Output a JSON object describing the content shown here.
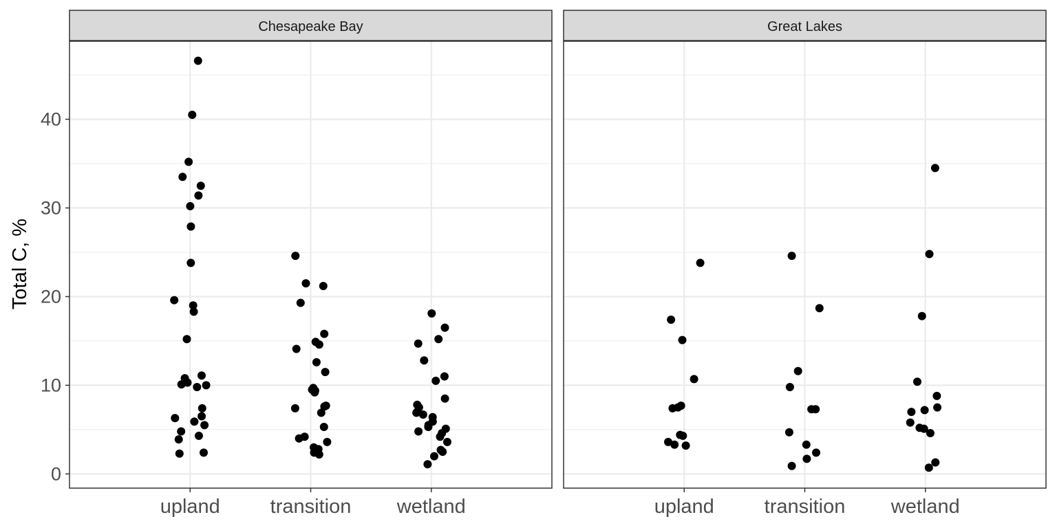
{
  "chart_data": {
    "type": "scatter",
    "ylabel": "Total C, %",
    "xlabel": "",
    "categories": [
      "upland",
      "transition",
      "wetland"
    ],
    "yticks": [
      0,
      10,
      20,
      30,
      40
    ],
    "ylim": [
      -1.6,
      48.8
    ],
    "grid": true,
    "colors": {
      "point": "#000000",
      "strip_fill": "#d9d9d9",
      "grid": "#ebebeb",
      "border": "#333333"
    },
    "facets": [
      {
        "title": "Chesapeake Bay",
        "points": {
          "upland": [
            46.6,
            40.5,
            35.2,
            33.5,
            32.5,
            31.4,
            30.2,
            27.9,
            23.8,
            19.6,
            19.0,
            18.3,
            15.2,
            11.1,
            10.8,
            10.3,
            10.1,
            10.0,
            9.8,
            7.4,
            6.5,
            6.3,
            5.9,
            5.5,
            4.8,
            4.3,
            3.9,
            2.4,
            2.3
          ],
          "transition": [
            24.6,
            21.5,
            21.2,
            19.3,
            15.8,
            14.9,
            14.6,
            14.1,
            12.6,
            11.5,
            9.7,
            9.5,
            9.4,
            9.2,
            7.7,
            7.6,
            7.4,
            6.9,
            5.3,
            4.2,
            4.0,
            3.6,
            3.0,
            2.8,
            2.4,
            2.2
          ],
          "wetland": [
            18.1,
            16.5,
            15.2,
            14.7,
            12.8,
            11.0,
            10.5,
            8.5,
            7.8,
            7.5,
            7.0,
            6.9,
            6.7,
            6.4,
            5.9,
            5.5,
            5.3,
            5.1,
            4.8,
            4.6,
            4.2,
            3.6,
            2.7,
            2.5,
            2.0,
            1.1
          ]
        }
      },
      {
        "title": "Great Lakes",
        "points": {
          "upland": [
            23.8,
            17.4,
            15.1,
            10.7,
            7.7,
            7.5,
            7.4,
            4.4,
            4.3,
            3.6,
            3.3,
            3.2
          ],
          "transition": [
            24.6,
            18.7,
            11.6,
            9.8,
            7.3,
            7.3,
            4.7,
            3.3,
            2.4,
            1.7,
            0.9
          ],
          "wetland": [
            34.5,
            24.8,
            17.8,
            10.4,
            8.8,
            7.5,
            7.2,
            7.0,
            5.8,
            5.2,
            5.1,
            4.6,
            1.3,
            0.7
          ]
        }
      }
    ]
  }
}
